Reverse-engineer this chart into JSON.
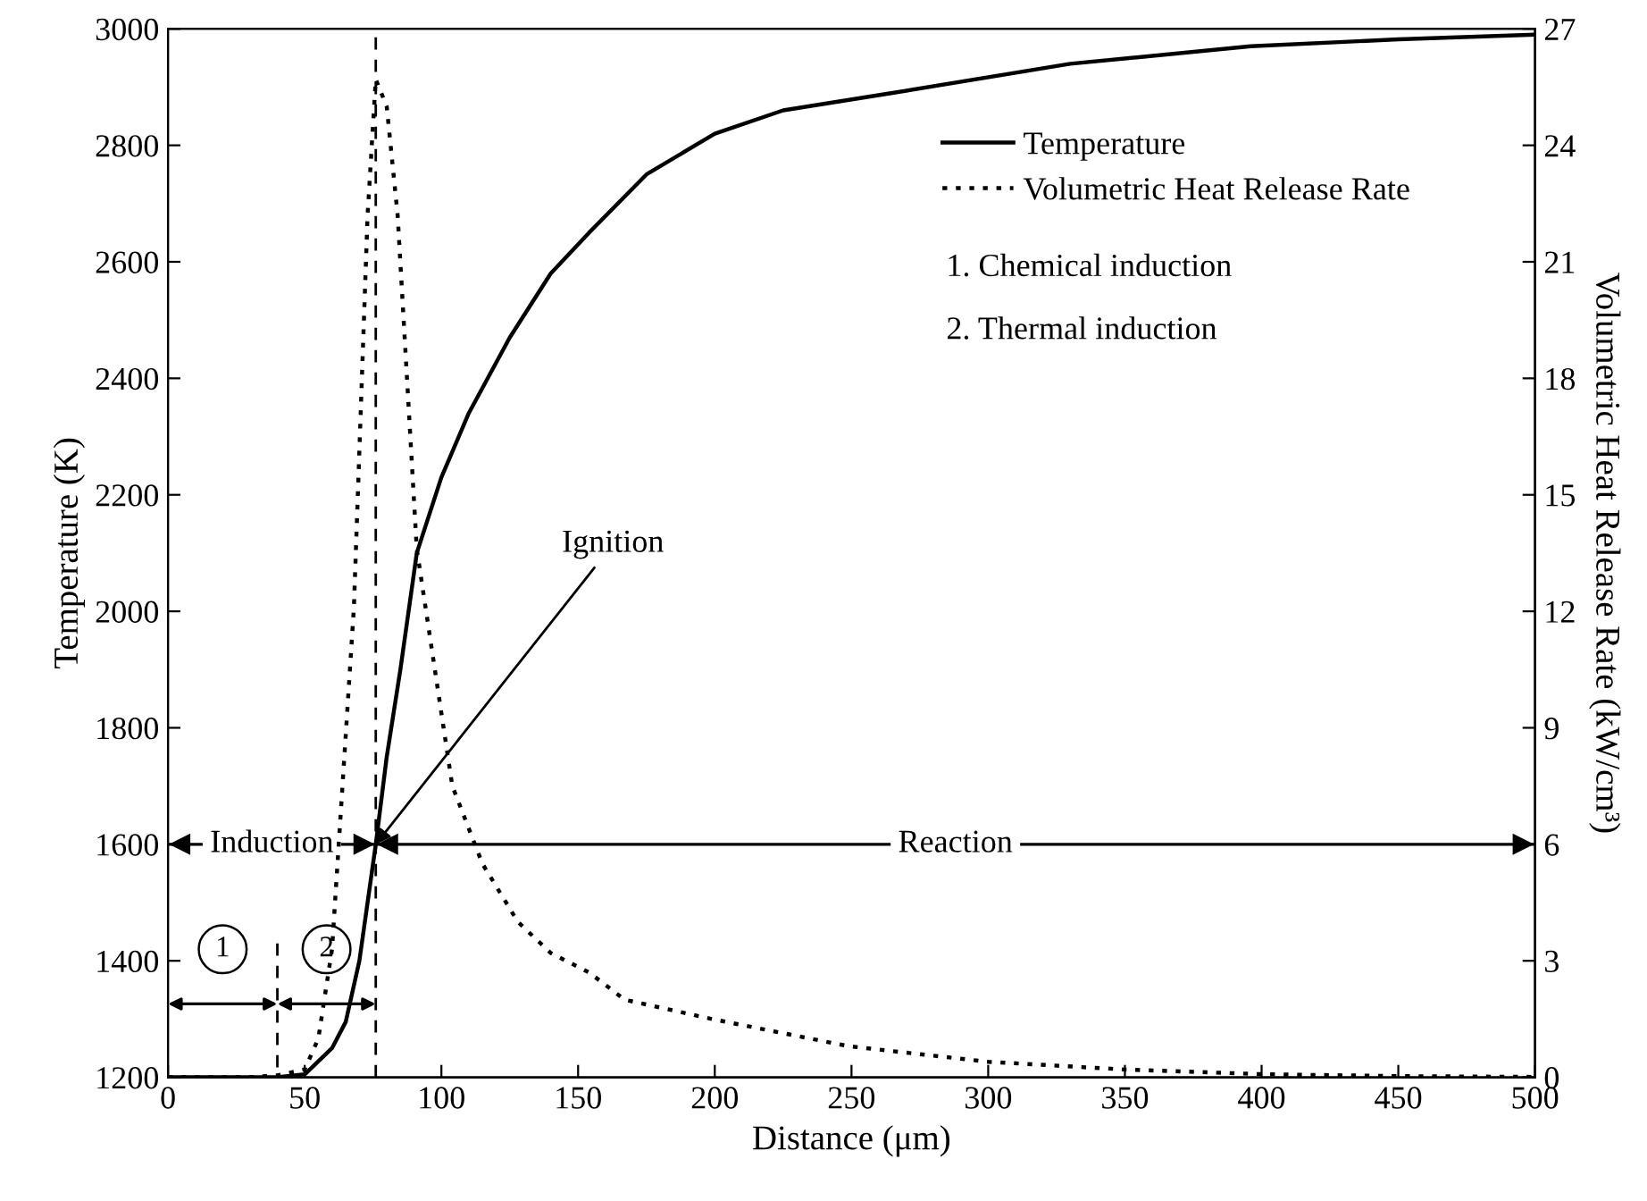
{
  "chart_data": {
    "type": "line",
    "xlabel": "Distance (μm)",
    "ylabel": "Temperature (K)",
    "y2label": "Volumetric Heat Release Rate (kW/cm³)",
    "xlim": [
      0,
      500
    ],
    "xticks": [
      0,
      50,
      100,
      150,
      200,
      250,
      300,
      350,
      400,
      450,
      500
    ],
    "ylim": [
      1200,
      3000
    ],
    "yticks": [
      1200,
      1400,
      1600,
      1800,
      2000,
      2200,
      2400,
      2600,
      2800,
      3000
    ],
    "y2lim": [
      0,
      27
    ],
    "y2ticks": [
      0,
      3,
      6,
      9,
      12,
      15,
      18,
      21,
      24,
      27
    ],
    "grid": false,
    "legend": "top right",
    "series": [
      {
        "name": "Temperature",
        "color": "#000000",
        "line_style": "solid",
        "x": [
          0,
          40,
          50,
          60,
          65,
          70,
          76,
          80,
          85,
          91,
          100,
          110,
          125,
          140,
          154,
          175,
          200,
          225,
          265,
          330,
          396,
          450,
          500
        ],
        "values": [
          1200,
          1200,
          1205,
          1250,
          1295,
          1400,
          1600,
          1750,
          1900,
          2100,
          2230,
          2340,
          2470,
          2580,
          2650,
          2750,
          2820,
          2860,
          2890,
          2940,
          2970,
          2982,
          2990
        ]
      },
      {
        "name": "Volumetric Heat Release Rate",
        "color": "#000000",
        "line_style": "dotted",
        "axis": "y2",
        "x": [
          0,
          30,
          40,
          50,
          55,
          60,
          68,
          73,
          76,
          80,
          84,
          91,
          104,
          115,
          128,
          140,
          154,
          167,
          199,
          249,
          300,
          350,
          400,
          450,
          500
        ],
        "values": [
          0,
          0,
          0.05,
          0.2,
          1,
          3.3,
          12.1,
          22.2,
          25.7,
          25,
          22.2,
          13.6,
          7.5,
          5.5,
          4,
          3.2,
          2.7,
          2,
          1.5,
          0.8,
          0.4,
          0.2,
          0.08,
          0.03,
          0.01
        ]
      },
      {
        "color": "#000000",
        "line_style": "dashed",
        "x": [
          40,
          40
        ],
        "values": [
          1430,
          1200
        ]
      }
    ],
    "ref_lines": [
      {
        "axis": "x",
        "value": 76,
        "color": "#000000",
        "line_style": "dashed"
      },
      {
        "axis": "y",
        "value": 1600,
        "label": "Reaction",
        "color": "#000000",
        "line_style": "solid"
      }
    ],
    "annotations": [
      {
        "text": "Ignition",
        "x": 76,
        "y": 1600
      },
      "Induction",
      "1",
      "2",
      "1. Chemical induction",
      "2. Thermal induction"
    ]
  }
}
